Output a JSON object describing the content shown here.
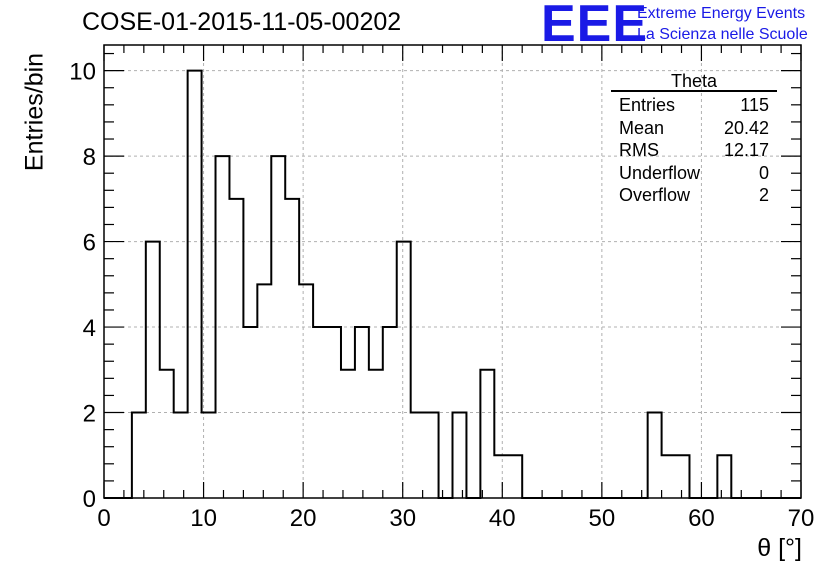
{
  "title": "COSE-01-2015-11-05-00202",
  "logo": {
    "mark": "EEE",
    "line1": "Extreme Energy Events",
    "line2": "La Scienza nelle Scuole"
  },
  "stats": {
    "title": "Theta",
    "rows": [
      {
        "label": "Entries",
        "value": "115"
      },
      {
        "label": "Mean",
        "value": "20.42"
      },
      {
        "label": "RMS",
        "value": "12.17"
      },
      {
        "label": "Underflow",
        "value": "0"
      },
      {
        "label": "Overflow",
        "value": "2"
      }
    ]
  },
  "chart_data": {
    "type": "histogram",
    "title": "COSE-01-2015-11-05-00202",
    "xlabel": "θ [°]",
    "ylabel": "Entries/bin",
    "xlim": [
      0,
      70
    ],
    "ylim": [
      0,
      10.6
    ],
    "bin_width": 1.4,
    "bin_edges_start": 0,
    "values": [
      0,
      0,
      2,
      6,
      3,
      2,
      10,
      2,
      8,
      7,
      4,
      5,
      8,
      7,
      5,
      4,
      4,
      3,
      4,
      3,
      4,
      6,
      2,
      2,
      0,
      2,
      0,
      3,
      1,
      1,
      0,
      0,
      0,
      0,
      0,
      0,
      0,
      0,
      0,
      2,
      1,
      1,
      0,
      0,
      1,
      0,
      0,
      0,
      0,
      0
    ],
    "x_ticks": [
      0,
      10,
      20,
      30,
      40,
      50,
      60,
      70
    ],
    "y_ticks": [
      0,
      2,
      4,
      6,
      8,
      10
    ],
    "grid": true,
    "line_color": "#000000"
  }
}
